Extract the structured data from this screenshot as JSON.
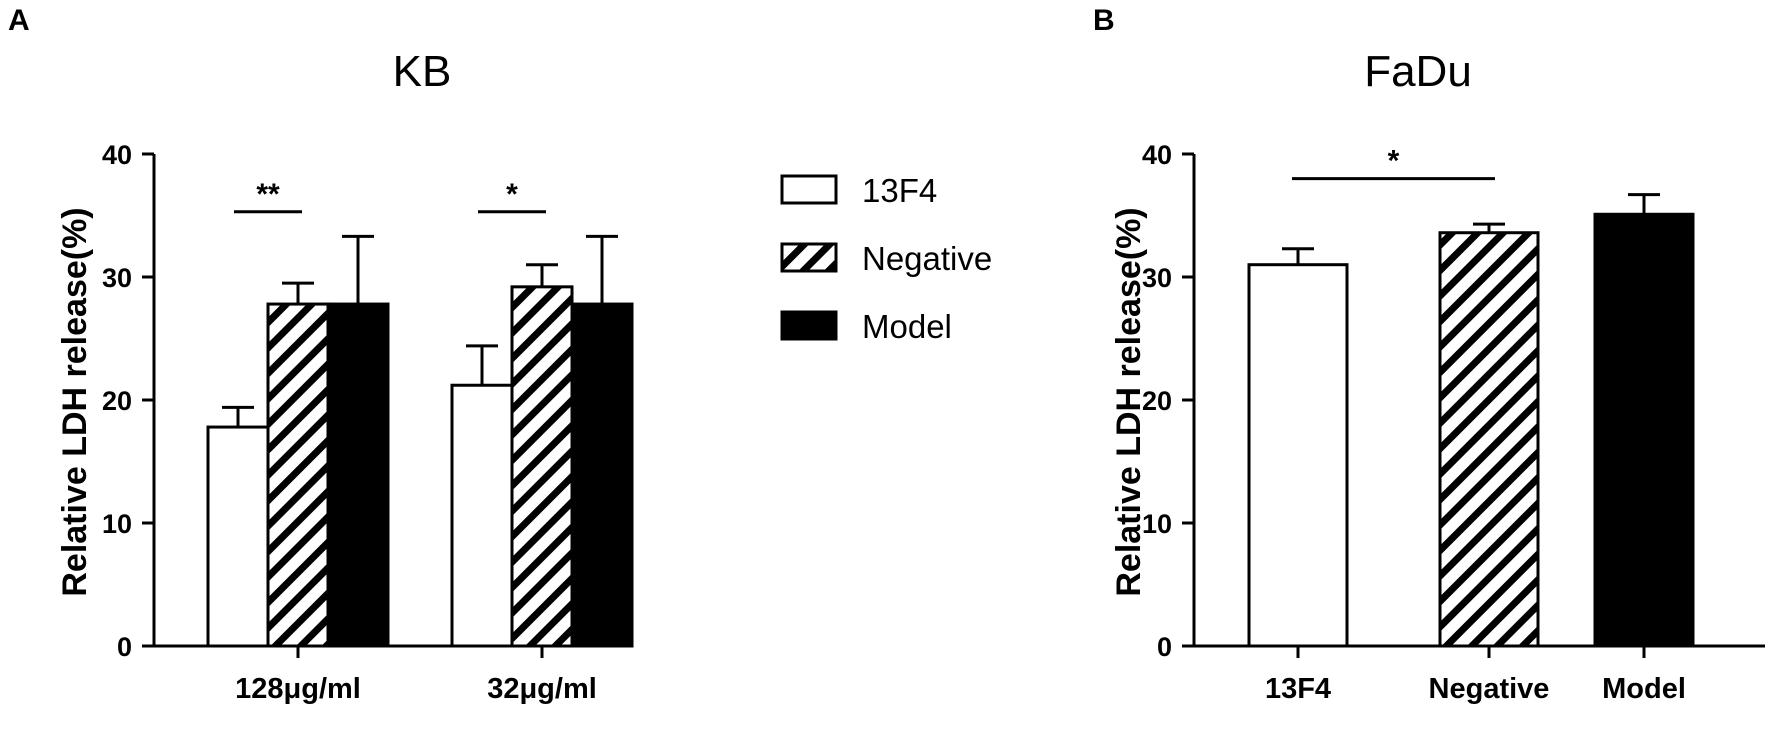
{
  "figure": {
    "panels": [
      {
        "letter": "A"
      },
      {
        "letter": "B"
      }
    ]
  },
  "colors": {
    "white_fill": "#ffffff",
    "black_fill": "#000000",
    "stroke": "#000000"
  },
  "chart_data": [
    {
      "type": "bar",
      "panel": "A",
      "title": "KB",
      "xlabel": "",
      "ylabel": "Relative LDH release(%)",
      "ylim": [
        0,
        40
      ],
      "yticks": [
        0,
        10,
        20,
        30,
        40
      ],
      "categories": [
        "128μg/ml",
        "32μg/ml"
      ],
      "series": [
        {
          "name": "13F4",
          "pattern": "white",
          "values": [
            17.8,
            21.2
          ],
          "errors": [
            1.6,
            3.2
          ]
        },
        {
          "name": "Negative",
          "pattern": "hatched",
          "values": [
            27.8,
            29.2
          ],
          "errors": [
            1.7,
            1.8
          ]
        },
        {
          "name": "Model",
          "pattern": "black",
          "values": [
            27.8,
            27.8
          ],
          "errors": [
            5.5,
            5.5
          ]
        }
      ],
      "significance": [
        {
          "category": 0,
          "from_series": 0,
          "to_series": 1,
          "label": "**",
          "y": 35.3
        },
        {
          "category": 1,
          "from_series": 0,
          "to_series": 1,
          "label": "*",
          "y": 35.3
        }
      ],
      "legend": {
        "position": "right",
        "entries": [
          {
            "label": "13F4",
            "pattern": "white"
          },
          {
            "label": "Negative",
            "pattern": "hatched"
          },
          {
            "label": "Model",
            "pattern": "black"
          }
        ]
      },
      "grid": false
    },
    {
      "type": "bar",
      "panel": "B",
      "title": "FaDu",
      "xlabel": "",
      "ylabel": "Relative LDH release(%)",
      "ylim": [
        0,
        40
      ],
      "yticks": [
        0,
        10,
        20,
        30,
        40
      ],
      "categories": [
        "13F4",
        "Negative",
        "Model"
      ],
      "values": [
        31.0,
        33.6,
        35.1
      ],
      "errors": [
        1.3,
        0.7,
        1.6
      ],
      "patterns": [
        "white",
        "hatched",
        "black"
      ],
      "significance": [
        {
          "from": 0,
          "to": 1,
          "label": "*",
          "y": 38.0
        }
      ],
      "grid": false
    }
  ]
}
